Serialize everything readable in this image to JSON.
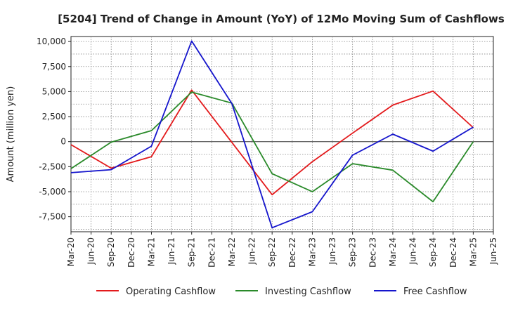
{
  "chart_data": {
    "type": "line",
    "title": "[5204]  Trend of Change in Amount (YoY) of 12Mo Moving Sum of Cashflows",
    "xlabel": "",
    "ylabel": "Amount (million yen)",
    "ylim": [
      -9000,
      10500
    ],
    "yticks": [
      10000,
      7500,
      5000,
      2500,
      0,
      -2500,
      -5000,
      -7500
    ],
    "ytick_labels": [
      "10,000",
      "7,500",
      "5,000",
      "2,500",
      "0",
      "-2,500",
      "-5,000",
      "-7,500"
    ],
    "categories": [
      "Mar-20",
      "Jun-20",
      "Sep-20",
      "Dec-20",
      "Mar-21",
      "Jun-21",
      "Sep-21",
      "Dec-21",
      "Mar-22",
      "Jun-22",
      "Sep-22",
      "Dec-22",
      "Mar-23",
      "Jun-23",
      "Sep-23",
      "Dec-23",
      "Mar-24",
      "Jun-24",
      "Sep-24",
      "Dec-24",
      "Mar-25",
      "Jun-25"
    ],
    "grid": true,
    "legend_position": "bottom",
    "series": [
      {
        "name": "Operating Cashflow",
        "color": "#e31a1c",
        "points": [
          [
            "Mar-20",
            -300
          ],
          [
            "Sep-20",
            -2650
          ],
          [
            "Mar-21",
            -1500
          ],
          [
            "Sep-21",
            5150
          ],
          [
            "Sep-22",
            -5300
          ],
          [
            "Mar-23",
            -2000
          ],
          [
            "Sep-23",
            850
          ],
          [
            "Mar-24",
            3650
          ],
          [
            "Sep-24",
            5050
          ],
          [
            "Mar-25",
            1400
          ]
        ]
      },
      {
        "name": "Investing Cashflow",
        "color": "#2a8a2a",
        "points": [
          [
            "Mar-20",
            -2700
          ],
          [
            "Sep-20",
            -50
          ],
          [
            "Mar-21",
            1100
          ],
          [
            "Sep-21",
            4950
          ],
          [
            "Mar-22",
            3850
          ],
          [
            "Sep-22",
            -3200
          ],
          [
            "Mar-23",
            -5000
          ],
          [
            "Sep-23",
            -2200
          ],
          [
            "Mar-24",
            -2850
          ],
          [
            "Sep-24",
            -6000
          ],
          [
            "Mar-25",
            0
          ]
        ]
      },
      {
        "name": "Free Cashflow",
        "color": "#1515cc",
        "points": [
          [
            "Mar-20",
            -3100
          ],
          [
            "Sep-20",
            -2800
          ],
          [
            "Mar-21",
            -450
          ],
          [
            "Sep-21",
            10050
          ],
          [
            "Mar-22",
            3800
          ],
          [
            "Sep-22",
            -8600
          ],
          [
            "Mar-23",
            -7000
          ],
          [
            "Sep-23",
            -1350
          ],
          [
            "Mar-24",
            750
          ],
          [
            "Sep-24",
            -950
          ],
          [
            "Mar-25",
            1450
          ]
        ]
      }
    ]
  }
}
